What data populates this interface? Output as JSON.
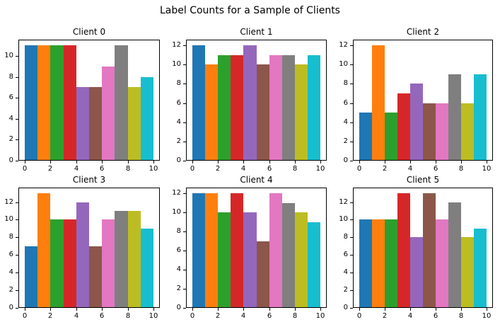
{
  "figure": {
    "suptitle": "Label Counts for a Sample of Clients",
    "background": "#ffffff",
    "spine_color": "#000000",
    "text_color": "#000000"
  },
  "palette": [
    "#1f77b4",
    "#ff7f0e",
    "#2ca02c",
    "#d62728",
    "#9467bd",
    "#8c564b",
    "#e377c2",
    "#7f7f7f",
    "#bcbd22",
    "#17becf"
  ],
  "chart_data": [
    {
      "type": "bar",
      "title": "Client 0",
      "categories": [
        0,
        1,
        2,
        3,
        4,
        5,
        6,
        7,
        8,
        9
      ],
      "values": [
        11,
        11,
        11,
        11,
        7,
        7,
        9,
        11,
        7,
        8
      ],
      "xlabel": "",
      "ylabel": "",
      "xlim": [
        -0.5,
        10.5
      ],
      "ylim": [
        0,
        11.55
      ],
      "xticks": [
        0,
        2,
        4,
        6,
        8,
        10
      ],
      "yticks": [
        0,
        2,
        4,
        6,
        8,
        10
      ],
      "bar_span": 1,
      "grid": false,
      "legend": "none"
    },
    {
      "type": "bar",
      "title": "Client 1",
      "categories": [
        0,
        1,
        2,
        3,
        4,
        5,
        6,
        7,
        8,
        9
      ],
      "values": [
        12,
        10,
        11,
        11,
        12,
        10,
        11,
        11,
        10,
        11
      ],
      "xlabel": "",
      "ylabel": "",
      "xlim": [
        -0.5,
        10.5
      ],
      "ylim": [
        0,
        12.6
      ],
      "xticks": [
        0,
        2,
        4,
        6,
        8,
        10
      ],
      "yticks": [
        0,
        2,
        4,
        6,
        8,
        10,
        12
      ],
      "bar_span": 1,
      "grid": false,
      "legend": "none"
    },
    {
      "type": "bar",
      "title": "Client 2",
      "categories": [
        0,
        1,
        2,
        3,
        4,
        5,
        6,
        7,
        8,
        9
      ],
      "values": [
        5,
        12,
        5,
        7,
        8,
        6,
        6,
        9,
        6,
        9
      ],
      "xlabel": "",
      "ylabel": "",
      "xlim": [
        -0.5,
        10.5
      ],
      "ylim": [
        0,
        12.6
      ],
      "xticks": [
        0,
        2,
        4,
        6,
        8,
        10
      ],
      "yticks": [
        0,
        2,
        4,
        6,
        8,
        10,
        12
      ],
      "bar_span": 1,
      "grid": false,
      "legend": "none"
    },
    {
      "type": "bar",
      "title": "Client 3",
      "categories": [
        0,
        1,
        2,
        3,
        4,
        5,
        6,
        7,
        8,
        9
      ],
      "values": [
        7,
        13,
        10,
        10,
        12,
        7,
        10,
        11,
        11,
        9
      ],
      "xlabel": "",
      "ylabel": "",
      "xlim": [
        -0.5,
        10.5
      ],
      "ylim": [
        0,
        13.65
      ],
      "xticks": [
        0,
        2,
        4,
        6,
        8,
        10
      ],
      "yticks": [
        0,
        2,
        4,
        6,
        8,
        10,
        12
      ],
      "bar_span": 1,
      "grid": false,
      "legend": "none"
    },
    {
      "type": "bar",
      "title": "Client 4",
      "categories": [
        0,
        1,
        2,
        3,
        4,
        5,
        6,
        7,
        8,
        9
      ],
      "values": [
        12,
        12,
        10,
        12,
        10,
        7,
        12,
        11,
        10,
        9
      ],
      "xlabel": "",
      "ylabel": "",
      "xlim": [
        -0.5,
        10.5
      ],
      "ylim": [
        0,
        12.6
      ],
      "xticks": [
        0,
        2,
        4,
        6,
        8,
        10
      ],
      "yticks": [
        0,
        2,
        4,
        6,
        8,
        10,
        12
      ],
      "bar_span": 1,
      "grid": false,
      "legend": "none"
    },
    {
      "type": "bar",
      "title": "Client 5",
      "categories": [
        0,
        1,
        2,
        3,
        4,
        5,
        6,
        7,
        8,
        9
      ],
      "values": [
        10,
        10,
        10,
        13,
        8,
        13,
        10,
        12,
        8,
        9
      ],
      "xlabel": "",
      "ylabel": "",
      "xlim": [
        -0.5,
        10.5
      ],
      "ylim": [
        0,
        13.65
      ],
      "xticks": [
        0,
        2,
        4,
        6,
        8,
        10
      ],
      "yticks": [
        0,
        2,
        4,
        6,
        8,
        10,
        12
      ],
      "bar_span": 1,
      "grid": false,
      "legend": "none"
    }
  ]
}
